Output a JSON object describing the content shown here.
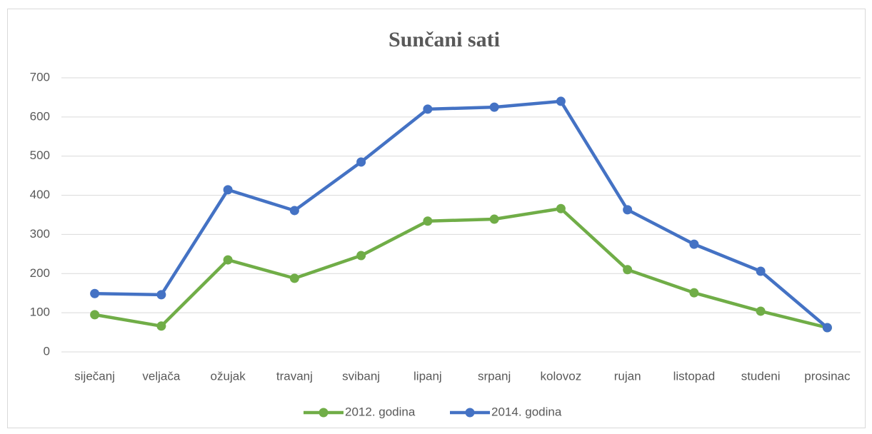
{
  "chart_data": {
    "type": "line",
    "title": "Sunčani sati",
    "categories": [
      "siječanj",
      "veljača",
      "ožujak",
      "travanj",
      "svibanj",
      "lipanj",
      "srpanj",
      "kolovoz",
      "rujan",
      "listopad",
      "studeni",
      "prosinac"
    ],
    "series": [
      {
        "name": "2012. godina",
        "color": "#70ad47",
        "values": [
          95,
          66,
          235,
          188,
          246,
          334,
          339,
          366,
          210,
          151,
          104,
          62
        ]
      },
      {
        "name": "2014. godina",
        "color": "#4472c4",
        "values": [
          149,
          146,
          414,
          361,
          485,
          620,
          625,
          640,
          363,
          275,
          206,
          62
        ]
      }
    ],
    "ylim": [
      0,
      700
    ],
    "yticks": [
      0,
      100,
      200,
      300,
      400,
      500,
      600,
      700
    ],
    "grid": true,
    "legend": "bottom"
  }
}
